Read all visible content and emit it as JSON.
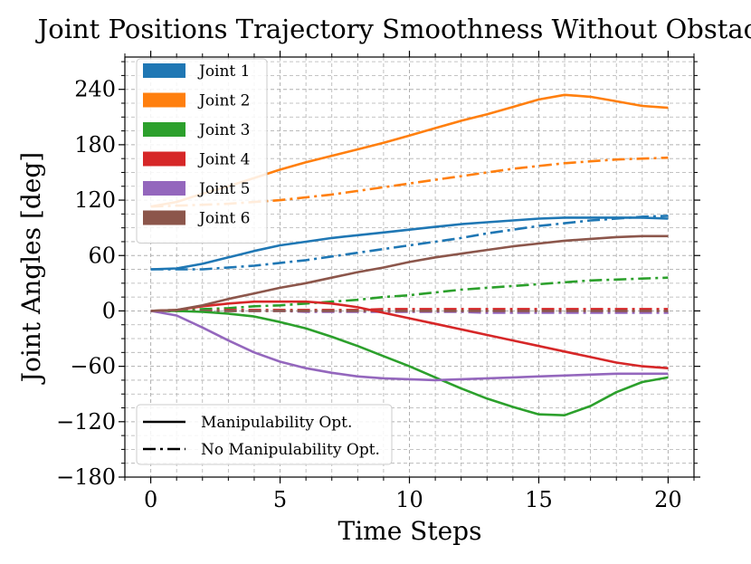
{
  "chart_data": {
    "type": "line",
    "title": "Joint Positions Trajectory Smoothness Without Obstacle",
    "xlabel": "Time Steps",
    "ylabel": "Joint Angles [deg]",
    "xlim": [
      -1,
      21
    ],
    "ylim": [
      -180,
      275
    ],
    "xticks": [
      0,
      5,
      10,
      15,
      20
    ],
    "xtick_labels": [
      "0",
      "5",
      "10",
      "15",
      "20"
    ],
    "yticks": [
      -180,
      -120,
      -60,
      0,
      60,
      120,
      180,
      240
    ],
    "ytick_labels": [
      "−180",
      "−120",
      "−60",
      "0",
      "60",
      "120",
      "180",
      "240"
    ],
    "grid": true,
    "minor_grid": true,
    "x": [
      0,
      1,
      2,
      3,
      4,
      5,
      6,
      7,
      8,
      9,
      10,
      11,
      12,
      13,
      14,
      15,
      16,
      17,
      18,
      19,
      20
    ],
    "series": [
      {
        "name": "Joint 1",
        "color": "#1f77b4",
        "style": "solid",
        "values": [
          45,
          46,
          51,
          58,
          65,
          71,
          75,
          79,
          82,
          85,
          88,
          91,
          94,
          96,
          98,
          100,
          101,
          101,
          101,
          101,
          100
        ]
      },
      {
        "name": "Joint 2",
        "color": "#ff7f0e",
        "style": "solid",
        "values": [
          113,
          118,
          127,
          135,
          144,
          153,
          161,
          168,
          175,
          182,
          190,
          198,
          206,
          213,
          221,
          229,
          234,
          232,
          227,
          222,
          220
        ]
      },
      {
        "name": "Joint 3",
        "color": "#2ca02c",
        "style": "solid",
        "values": [
          0,
          0,
          -1,
          -3,
          -6,
          -12,
          -19,
          -28,
          -38,
          -49,
          -60,
          -72,
          -84,
          -95,
          -104,
          -112,
          -113,
          -103,
          -88,
          -77,
          -72
        ]
      },
      {
        "name": "Joint 4",
        "color": "#d62728",
        "style": "solid",
        "values": [
          0,
          1,
          5,
          8,
          10,
          10,
          10,
          8,
          4,
          -2,
          -8,
          -14,
          -20,
          -26,
          -32,
          -38,
          -44,
          -50,
          -56,
          -60,
          -62
        ]
      },
      {
        "name": "Joint 5",
        "color": "#9467bd",
        "style": "solid",
        "values": [
          0,
          -5,
          -18,
          -32,
          -45,
          -55,
          -62,
          -67,
          -71,
          -73,
          -74,
          -75,
          -74,
          -73,
          -72,
          -71,
          -70,
          -69,
          -68,
          -68,
          -68
        ]
      },
      {
        "name": "Joint 6",
        "color": "#8c564b",
        "style": "solid",
        "values": [
          0,
          1,
          6,
          13,
          19,
          25,
          30,
          36,
          42,
          47,
          53,
          58,
          62,
          66,
          70,
          73,
          76,
          78,
          80,
          81,
          81
        ]
      },
      {
        "name": "Joint 1",
        "color": "#1f77b4",
        "style": "dashdot",
        "values": [
          45,
          45,
          45,
          47,
          49,
          52,
          55,
          59,
          63,
          67,
          71,
          75,
          79,
          84,
          88,
          92,
          95,
          98,
          100,
          102,
          103
        ]
      },
      {
        "name": "Joint 2",
        "color": "#ff7f0e",
        "style": "dashdot",
        "values": [
          113,
          114,
          115,
          116,
          118,
          120,
          123,
          126,
          130,
          134,
          138,
          142,
          146,
          150,
          154,
          157,
          160,
          162,
          164,
          165,
          166
        ]
      },
      {
        "name": "Joint 3",
        "color": "#2ca02c",
        "style": "dashdot",
        "values": [
          0,
          1,
          2,
          3,
          5,
          6,
          8,
          10,
          12,
          15,
          17,
          20,
          23,
          25,
          27,
          29,
          31,
          33,
          34,
          35,
          36
        ]
      },
      {
        "name": "Joint 4",
        "color": "#d62728",
        "style": "dashdot",
        "values": [
          0,
          0,
          0,
          1,
          1,
          1,
          1,
          1,
          1,
          2,
          2,
          2,
          2,
          2,
          2,
          2,
          2,
          2,
          2,
          2,
          2
        ]
      },
      {
        "name": "Joint 5",
        "color": "#9467bd",
        "style": "dashdot",
        "values": [
          0,
          0,
          0,
          0,
          0,
          0,
          -1,
          -1,
          -1,
          -1,
          -1,
          -1,
          -1,
          -2,
          -2,
          -2,
          -2,
          -2,
          -2,
          -2,
          -2
        ]
      },
      {
        "name": "Joint 6",
        "color": "#8c564b",
        "style": "dashdot",
        "values": [
          0,
          0,
          0,
          0,
          0,
          0,
          0,
          0,
          0,
          0,
          0,
          0,
          0,
          0,
          0,
          0,
          0,
          0,
          0,
          0,
          0
        ]
      }
    ],
    "legend": {
      "placement": "upper-left",
      "entries": [
        {
          "label": "Joint 1",
          "color": "#1f77b4"
        },
        {
          "label": "Joint 2",
          "color": "#ff7f0e"
        },
        {
          "label": "Joint 3",
          "color": "#2ca02c"
        },
        {
          "label": "Joint 4",
          "color": "#d62728"
        },
        {
          "label": "Joint 5",
          "color": "#9467bd"
        },
        {
          "label": "Joint 6",
          "color": "#8c564b"
        }
      ]
    },
    "style_legend": {
      "placement": "lower-left",
      "entries": [
        {
          "label": "Manipulability Opt.",
          "style": "solid"
        },
        {
          "label": "No Manipulability Opt.",
          "style": "dashdot"
        }
      ]
    }
  }
}
